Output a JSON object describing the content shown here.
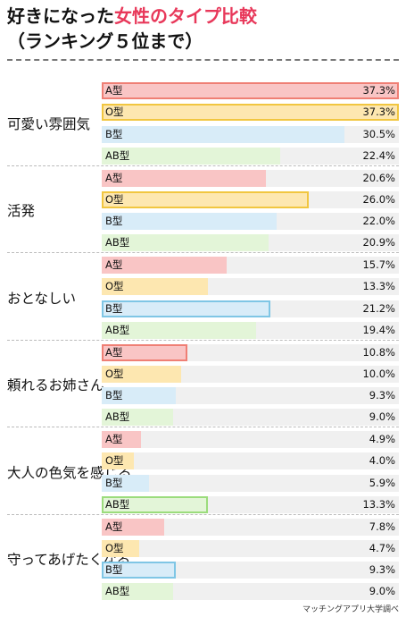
{
  "title": {
    "line1_part1": "好きになった",
    "line1_highlight": "女性のタイプ比較",
    "line2": "（ランキング５位まで）"
  },
  "source": "マッチングアプリ大学調べ",
  "colors": {
    "A型": "#f9c5c5",
    "O型": "#fde7b0",
    "B型": "#d8ecf8",
    "AB型": "#e3f5d8",
    "A型_border": "#ef7f75",
    "O型_border": "#f1c640",
    "B型_border": "#7fc6e5",
    "AB型_border": "#9bdc7c",
    "title_highlight": "#e8385a"
  },
  "chart_data": {
    "type": "bar",
    "orientation": "horizontal",
    "xlim": [
      0,
      37.3
    ],
    "series_names": [
      "A型",
      "O型",
      "B型",
      "AB型"
    ],
    "groups": [
      {
        "label": "可愛い雰囲気",
        "values": [
          37.3,
          37.3,
          30.5,
          22.4
        ],
        "display": [
          "37.3%",
          "37.3%",
          "30.5%",
          "22.4%"
        ],
        "highlighted": [
          "A型",
          "O型"
        ]
      },
      {
        "label": "活発",
        "values": [
          20.6,
          26.0,
          22.0,
          20.9
        ],
        "display": [
          "20.6%",
          "26.0%",
          "22.0%",
          "20.9%"
        ],
        "highlighted": [
          "O型"
        ]
      },
      {
        "label": "おとなしい",
        "values": [
          15.7,
          13.3,
          21.2,
          19.4
        ],
        "display": [
          "15.7%",
          "13.3%",
          "21.2%",
          "19.4%"
        ],
        "highlighted": [
          "B型"
        ]
      },
      {
        "label": "頼れるお姉さん",
        "values": [
          10.8,
          10.0,
          9.3,
          9.0
        ],
        "display": [
          "10.8%",
          "10.0%",
          "9.3%",
          "9.0%"
        ],
        "highlighted": [
          "A型"
        ]
      },
      {
        "label": "大人の色気を感じる",
        "values": [
          4.9,
          4.0,
          5.9,
          13.3
        ],
        "display": [
          "4.9%",
          "4.0%",
          "5.9%",
          "13.3%"
        ],
        "highlighted": [
          "AB型"
        ]
      },
      {
        "label": "守ってあげたくなる",
        "values": [
          7.8,
          4.7,
          9.3,
          9.0
        ],
        "display": [
          "7.8%",
          "4.7%",
          "9.3%",
          "9.0%"
        ],
        "highlighted": [
          "B型"
        ]
      }
    ]
  }
}
